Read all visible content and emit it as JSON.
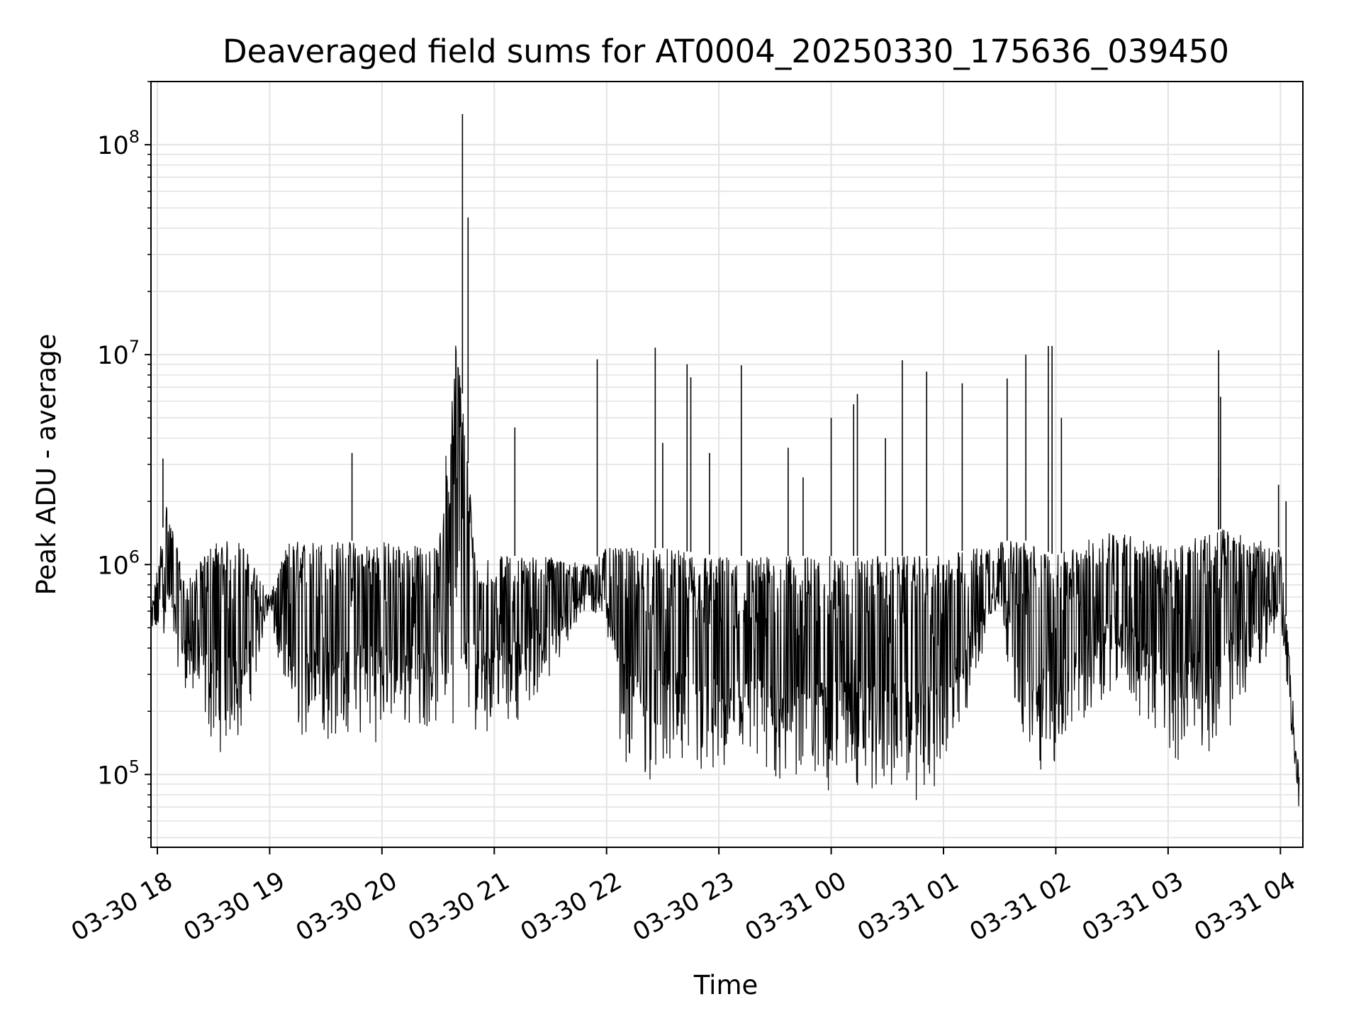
{
  "chart_data": {
    "type": "line",
    "title": "Deaveraged field sums for AT0004_20250330_175636_039450",
    "xlabel": "Time",
    "ylabel": "Peak ADU - average",
    "y_scale": "log",
    "ylim": [
      45000,
      200000000
    ],
    "xlim": [
      "2025-03-30 17:56:36",
      "2025-03-31 04:12:00"
    ],
    "grid": true,
    "line_color": "#000000",
    "x_ticks": [
      {
        "t": "2025-03-30 18:00",
        "label": "03-30 18"
      },
      {
        "t": "2025-03-30 19:00",
        "label": "03-30 19"
      },
      {
        "t": "2025-03-30 20:00",
        "label": "03-30 20"
      },
      {
        "t": "2025-03-30 21:00",
        "label": "03-30 21"
      },
      {
        "t": "2025-03-30 22:00",
        "label": "03-30 22"
      },
      {
        "t": "2025-03-30 23:00",
        "label": "03-30 23"
      },
      {
        "t": "2025-03-31 00:00",
        "label": "03-31 00"
      },
      {
        "t": "2025-03-31 01:00",
        "label": "03-31 01"
      },
      {
        "t": "2025-03-31 02:00",
        "label": "03-31 02"
      },
      {
        "t": "2025-03-31 03:00",
        "label": "03-31 03"
      },
      {
        "t": "2025-03-31 04:00",
        "label": "03-31 04"
      }
    ],
    "y_ticks": [
      {
        "value": 100000,
        "base": "10",
        "exp": "5"
      },
      {
        "value": 1000000,
        "base": "10",
        "exp": "6"
      },
      {
        "value": 10000000,
        "base": "10",
        "exp": "7"
      },
      {
        "value": 100000000,
        "base": "10",
        "exp": "8"
      }
    ],
    "series": [
      {
        "envelope": {
          "t": [
            "2025-03-30 17:56:36",
            "2025-03-30 18:05",
            "2025-03-30 18:15",
            "2025-03-30 18:30",
            "2025-03-30 18:45",
            "2025-03-30 19:00",
            "2025-03-30 19:10",
            "2025-03-30 19:30",
            "2025-03-30 20:00",
            "2025-03-30 20:30",
            "2025-03-30 20:40",
            "2025-03-30 20:50",
            "2025-03-30 21:10",
            "2025-03-30 21:30",
            "2025-03-30 21:50",
            "2025-03-30 22:00",
            "2025-03-30 22:10",
            "2025-03-30 22:30",
            "2025-03-30 23:00",
            "2025-03-31 00:00",
            "2025-03-31 01:00",
            "2025-03-31 01:30",
            "2025-03-31 01:45",
            "2025-03-31 02:00",
            "2025-03-31 02:30",
            "2025-03-31 03:00",
            "2025-03-31 03:30",
            "2025-03-31 04:00",
            "2025-03-31 04:10"
          ],
          "low": [
            400000,
            450000,
            250000,
            120000,
            130000,
            600000,
            140000,
            130000,
            140000,
            160000,
            170000,
            150000,
            170000,
            250000,
            600000,
            450000,
            90000,
            85000,
            75000,
            75000,
            70000,
            600000,
            80000,
            100000,
            250000,
            110000,
            130000,
            500000,
            60000
          ],
          "high": [
            600000,
            2000000,
            800000,
            1300000,
            1300000,
            700000,
            1300000,
            1300000,
            1300000,
            1200000,
            14000000,
            1100000,
            1100000,
            1100000,
            1000000,
            1200000,
            1200000,
            1200000,
            1100000,
            1100000,
            1100000,
            1300000,
            1300000,
            1100000,
            1500000,
            1200000,
            1500000,
            1200000,
            100000
          ]
        },
        "spikes": [
          {
            "t": "2025-03-30 18:03",
            "value": 3200000
          },
          {
            "t": "2025-03-30 19:44",
            "value": 3400000
          },
          {
            "t": "2025-03-30 20:43",
            "value": 140000000
          },
          {
            "t": "2025-03-30 20:46",
            "value": 45000000
          },
          {
            "t": "2025-03-30 21:11",
            "value": 4500000
          },
          {
            "t": "2025-03-30 21:55",
            "value": 9500000
          },
          {
            "t": "2025-03-30 22:26",
            "value": 10800000
          },
          {
            "t": "2025-03-30 22:30",
            "value": 3800000
          },
          {
            "t": "2025-03-30 22:43",
            "value": 9000000
          },
          {
            "t": "2025-03-30 22:45",
            "value": 7800000
          },
          {
            "t": "2025-03-30 22:55",
            "value": 3400000
          },
          {
            "t": "2025-03-30 23:12",
            "value": 8900000
          },
          {
            "t": "2025-03-30 23:37",
            "value": 3600000
          },
          {
            "t": "2025-03-30 23:45",
            "value": 2600000
          },
          {
            "t": "2025-03-31 00:00",
            "value": 5000000
          },
          {
            "t": "2025-03-31 00:12",
            "value": 5800000
          },
          {
            "t": "2025-03-31 00:14",
            "value": 6500000
          },
          {
            "t": "2025-03-31 00:29",
            "value": 4000000
          },
          {
            "t": "2025-03-31 00:38",
            "value": 9400000
          },
          {
            "t": "2025-03-31 00:51",
            "value": 8300000
          },
          {
            "t": "2025-03-31 01:10",
            "value": 7300000
          },
          {
            "t": "2025-03-31 01:34",
            "value": 7700000
          },
          {
            "t": "2025-03-31 01:44",
            "value": 10000000
          },
          {
            "t": "2025-03-31 01:56",
            "value": 11000000
          },
          {
            "t": "2025-03-31 01:58",
            "value": 11000000
          },
          {
            "t": "2025-03-31 02:03",
            "value": 5000000
          },
          {
            "t": "2025-03-31 03:27",
            "value": 2600000
          },
          {
            "t": "2025-03-31 03:27",
            "value": 10500000
          },
          {
            "t": "2025-03-31 03:28",
            "value": 6300000
          },
          {
            "t": "2025-03-31 03:59",
            "value": 2400000
          },
          {
            "t": "2025-03-31 04:03",
            "value": 2000000
          }
        ]
      }
    ]
  }
}
